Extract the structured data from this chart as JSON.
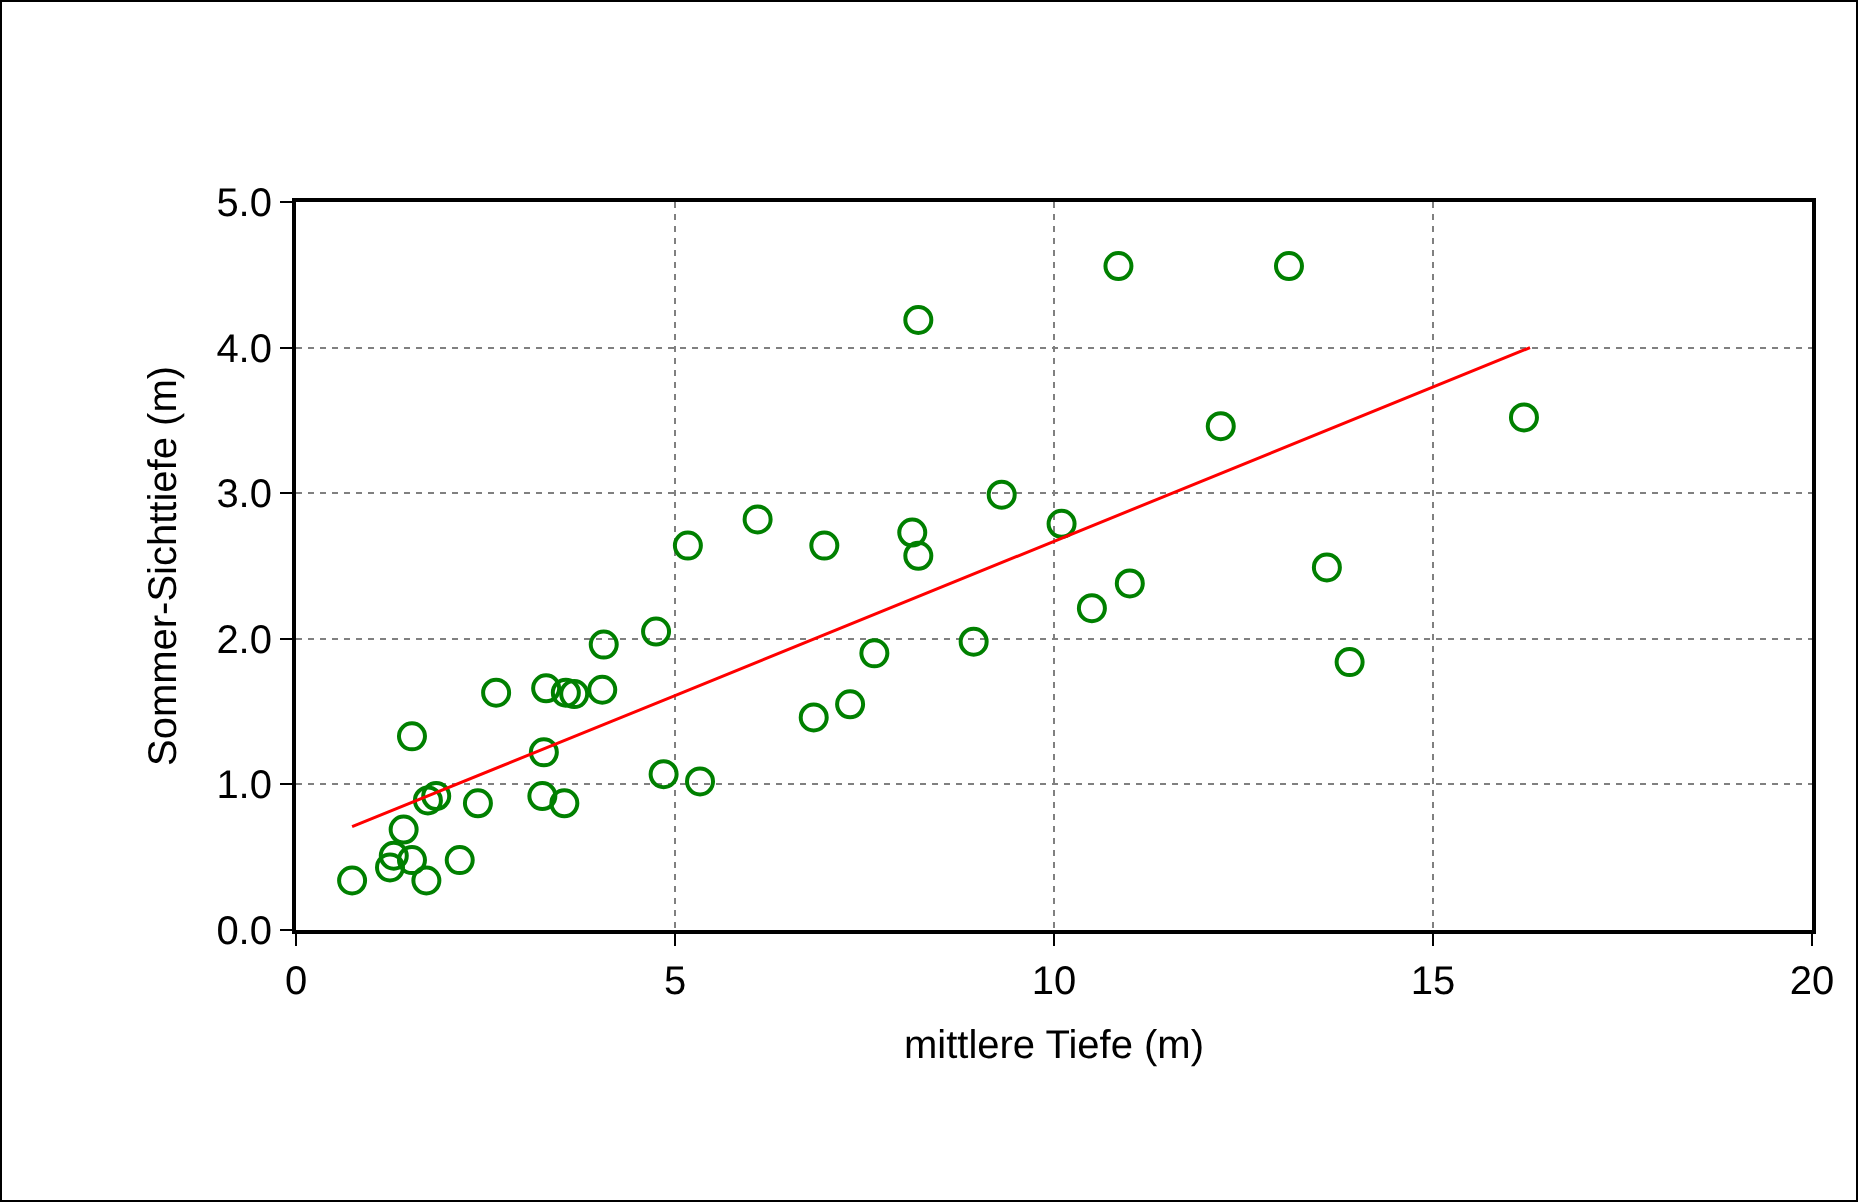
{
  "chart_data": {
    "type": "scatter",
    "xlabel": "mittlere Tiefe (m)",
    "ylabel": "Sommer-Sichttiefe (m)",
    "xlim": [
      0,
      20
    ],
    "xticks": [
      0,
      5,
      10,
      15,
      20
    ],
    "ylim": [
      0,
      5
    ],
    "yticks": [
      {
        "value": 0,
        "label": "0.0"
      },
      {
        "value": 1,
        "label": "1.0"
      },
      {
        "value": 2,
        "label": "2.0"
      },
      {
        "value": 3,
        "label": "3.0"
      },
      {
        "value": 4,
        "label": "4.0"
      },
      {
        "value": 5,
        "label": "5.0"
      }
    ],
    "grid": true,
    "legend": false,
    "series": [
      {
        "marker": "circle",
        "color": "#008000",
        "x": [
          0.74,
          1.24,
          1.29,
          1.42,
          1.53,
          1.53,
          1.72,
          1.74,
          1.85,
          2.16,
          2.4,
          2.64,
          3.27,
          3.25,
          3.3,
          3.54,
          3.56,
          3.67,
          4.04,
          4.06,
          4.75,
          4.85,
          5.17,
          5.33,
          6.09,
          6.83,
          6.97,
          7.31,
          7.63,
          8.13,
          8.21,
          8.21,
          8.94,
          9.31,
          10.1,
          10.5,
          10.85,
          11.0,
          12.2,
          13.1,
          13.6,
          13.9,
          16.2
        ],
        "values": [
          0.34,
          0.43,
          0.51,
          0.69,
          1.33,
          0.48,
          0.34,
          0.89,
          0.92,
          0.48,
          0.87,
          1.63,
          1.22,
          0.92,
          1.66,
          0.87,
          1.63,
          1.62,
          1.65,
          1.96,
          2.05,
          1.07,
          2.64,
          1.02,
          2.82,
          1.46,
          2.64,
          1.55,
          1.9,
          2.73,
          2.57,
          4.19,
          1.98,
          2.99,
          2.79,
          2.21,
          4.56,
          2.38,
          3.46,
          4.56,
          2.49,
          1.84,
          3.52
        ]
      },
      {
        "type": "line",
        "color": "#ff0000",
        "x": [
          0.74,
          5,
          16.28
        ],
        "values": [
          0.71,
          1.61,
          4.0
        ]
      }
    ]
  }
}
